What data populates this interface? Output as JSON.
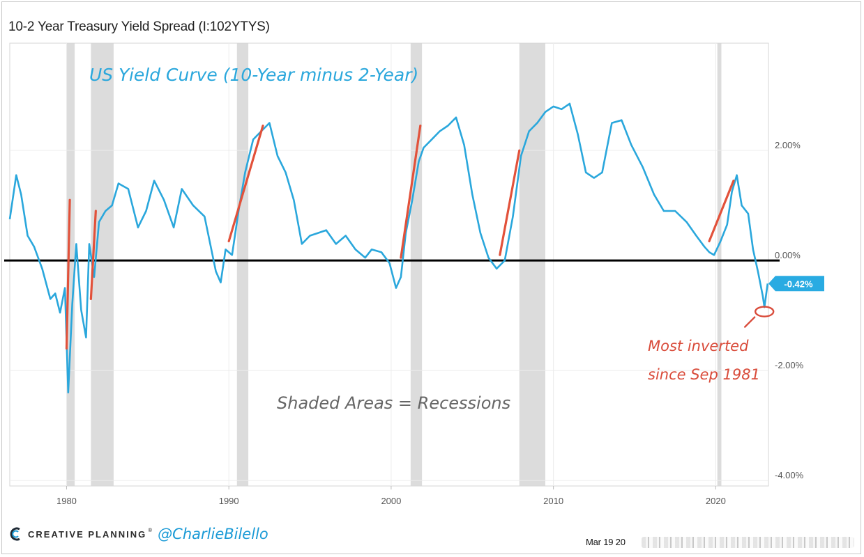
{
  "header": {
    "title": "10-2 Year Treasury Yield Spread (I:102YTYS)"
  },
  "chart_data": {
    "type": "line",
    "title": "US Yield Curve (10-Year minus 2-Year)",
    "xlabel": "",
    "ylabel": "",
    "x_ticks": [
      "1980",
      "1990",
      "2000",
      "2010",
      "2020"
    ],
    "y_ticks": [
      "2.00%",
      "0.00%",
      "-2.00%",
      "-4.00%"
    ],
    "xlim": [
      1976.5,
      2023.25
    ],
    "ylim": [
      -4.1,
      3.95
    ],
    "current_value_label": "-0.42%",
    "series": [
      {
        "name": "10-2 Year Treasury Yield Spread",
        "color": "#2aa7dc",
        "x": [
          1976.5,
          1976.9,
          1977.2,
          1977.6,
          1978.0,
          1978.5,
          1979.0,
          1979.3,
          1979.6,
          1979.9,
          1980.1,
          1980.35,
          1980.6,
          1980.9,
          1981.2,
          1981.4,
          1981.7,
          1982.0,
          1982.4,
          1982.8,
          1983.2,
          1983.8,
          1984.4,
          1984.9,
          1985.4,
          1986.0,
          1986.6,
          1987.1,
          1987.8,
          1988.5,
          1989.2,
          1989.5,
          1989.8,
          1990.2,
          1990.6,
          1991.0,
          1991.5,
          1992.0,
          1992.5,
          1993.0,
          1993.5,
          1994.0,
          1994.5,
          1995.0,
          1995.5,
          1996.0,
          1996.6,
          1997.2,
          1997.8,
          1998.4,
          1998.8,
          1999.4,
          1999.9,
          2000.3,
          2000.6,
          2000.9,
          2001.3,
          2001.7,
          2002.0,
          2002.5,
          2003.0,
          2003.5,
          2004.0,
          2004.5,
          2005.0,
          2005.5,
          2006.0,
          2006.5,
          2007.0,
          2007.5,
          2008.0,
          2008.5,
          2009.0,
          2009.5,
          2010.0,
          2010.5,
          2011.0,
          2011.5,
          2012.0,
          2012.5,
          2013.0,
          2013.6,
          2014.2,
          2014.8,
          2015.5,
          2016.2,
          2016.8,
          2017.5,
          2018.2,
          2018.8,
          2019.3,
          2019.6,
          2019.9,
          2020.3,
          2020.7,
          2021.0,
          2021.3,
          2021.6,
          2022.0,
          2022.3,
          2022.6,
          2022.9,
          2023.0,
          2023.2
        ],
        "values": [
          0.75,
          1.55,
          1.2,
          0.45,
          0.25,
          -0.15,
          -0.7,
          -0.6,
          -0.95,
          -0.5,
          -2.4,
          -0.8,
          0.3,
          -0.9,
          -1.4,
          0.3,
          -0.3,
          0.7,
          0.9,
          1.0,
          1.4,
          1.3,
          0.6,
          0.9,
          1.45,
          1.1,
          0.6,
          1.3,
          1.0,
          0.8,
          -0.2,
          -0.4,
          0.2,
          0.1,
          0.9,
          1.6,
          2.2,
          2.35,
          2.5,
          1.9,
          1.6,
          1.1,
          0.3,
          0.45,
          0.5,
          0.55,
          0.3,
          0.45,
          0.2,
          0.05,
          0.2,
          0.15,
          -0.05,
          -0.5,
          -0.3,
          0.5,
          1.1,
          1.8,
          2.05,
          2.2,
          2.35,
          2.45,
          2.6,
          2.1,
          1.2,
          0.5,
          0.05,
          -0.15,
          0.0,
          0.8,
          1.9,
          2.35,
          2.5,
          2.7,
          2.8,
          2.75,
          2.85,
          2.3,
          1.6,
          1.5,
          1.6,
          2.5,
          2.55,
          2.1,
          1.7,
          1.2,
          0.9,
          0.9,
          0.7,
          0.45,
          0.25,
          0.15,
          0.1,
          0.35,
          0.65,
          1.25,
          1.55,
          1.0,
          0.85,
          0.2,
          -0.2,
          -0.65,
          -0.85,
          -0.42
        ]
      }
    ],
    "recessions": [
      [
        1980.0,
        1980.5
      ],
      [
        1981.5,
        1982.9
      ],
      [
        1990.5,
        1991.2
      ],
      [
        2001.2,
        2001.9
      ],
      [
        2007.9,
        2009.5
      ],
      [
        2020.1,
        2020.35
      ]
    ],
    "reference_line": {
      "value": 0.0,
      "color": "#000000"
    },
    "red_trend_lines": [
      {
        "x": [
          1980.0,
          1980.2
        ],
        "y": [
          -1.6,
          1.1
        ]
      },
      {
        "x": [
          1981.5,
          1981.8
        ],
        "y": [
          -0.7,
          0.9
        ]
      },
      {
        "x": [
          1990.0,
          1992.1
        ],
        "y": [
          0.35,
          2.45
        ]
      },
      {
        "x": [
          2000.6,
          2001.8
        ],
        "y": [
          0.05,
          2.45
        ]
      },
      {
        "x": [
          2006.7,
          2007.9
        ],
        "y": [
          0.1,
          2.0
        ]
      },
      {
        "x": [
          2019.6,
          2021.1
        ],
        "y": [
          0.35,
          1.45
        ]
      }
    ],
    "min_marker": {
      "x": 2023.0,
      "y": -0.93
    },
    "annotations": {
      "headline": "US Yield Curve (10-Year minus 2-Year)",
      "recession_note": "Shaded Areas = Recessions",
      "inverted_line1": "Most inverted",
      "inverted_line2": "since Sep 1981"
    },
    "colors": {
      "line": "#2aa7dc",
      "recession": "#dcdcdc",
      "trend": "#e2513a",
      "headline": "#2aa7dc",
      "note": "#666666",
      "annotation": "#d94b3a",
      "grid": "#ececec",
      "badge": "#29abe2"
    }
  },
  "footer": {
    "brand": "CREATIVE PLANNING",
    "brand_mark": "®",
    "handle": "@CharlieBilello",
    "date": "Mar 19 20"
  }
}
